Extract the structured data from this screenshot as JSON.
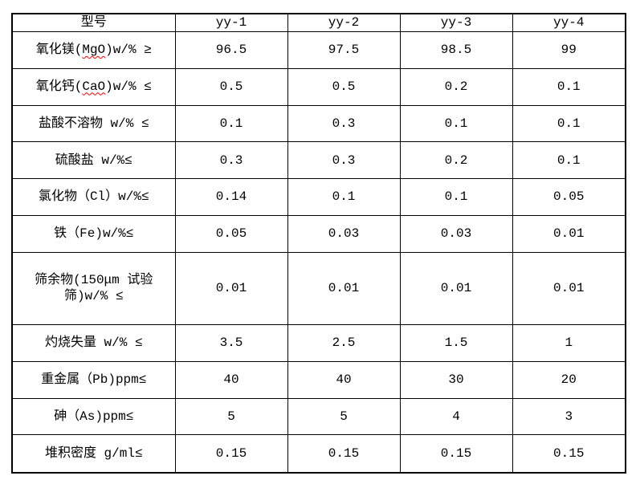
{
  "document": {
    "background_color": "#ffffff",
    "border_color": "#000000",
    "text_color": "#000000",
    "spellcheck_underline_color": "#ff0000"
  },
  "table": {
    "columns": [
      "型号",
      "yy-1",
      "yy-2",
      "yy-3",
      "yy-4"
    ],
    "rows": [
      {
        "label_pre": "氧化镁(",
        "label_marked": "MgO",
        "label_post": ")w/% ≥",
        "values": [
          "96.5",
          "97.5",
          "98.5",
          "99"
        ]
      },
      {
        "label_pre": "氧化钙(",
        "label_marked": "CaO",
        "label_post": ")w/% ≤",
        "values": [
          "0.5",
          "0.5",
          "0.2",
          "0.1"
        ]
      },
      {
        "label_pre": "盐酸不溶物 w/% ≤",
        "label_marked": "",
        "label_post": "",
        "values": [
          "0.1",
          "0.3",
          "0.1",
          "0.1"
        ]
      },
      {
        "label_pre": "硫酸盐 w/%≤",
        "label_marked": "",
        "label_post": "",
        "values": [
          "0.3",
          "0.3",
          "0.2",
          "0.1"
        ]
      },
      {
        "label_pre": "氯化物（Cl）w/%≤",
        "label_marked": "",
        "label_post": "",
        "values": [
          "0.14",
          "0.1",
          "0.1",
          "0.05"
        ]
      },
      {
        "label_pre": "铁（Fe)w/%≤",
        "label_marked": "",
        "label_post": "",
        "values": [
          "0.05",
          "0.03",
          "0.03",
          "0.01"
        ]
      },
      {
        "label_pre": "筛余物(150μm 试验\n筛)w/% ≤",
        "label_marked": "",
        "label_post": "",
        "values": [
          "0.01",
          "0.01",
          "0.01",
          "0.01"
        ]
      },
      {
        "label_pre": "灼烧失量 w/% ≤",
        "label_marked": "",
        "label_post": "",
        "values": [
          "3.5",
          "2.5",
          "1.5",
          "1"
        ]
      },
      {
        "label_pre": "重金属（Pb)ppm≤",
        "label_marked": "",
        "label_post": "",
        "values": [
          "40",
          "40",
          "30",
          "20"
        ]
      },
      {
        "label_pre": "砷（As)ppm≤",
        "label_marked": "",
        "label_post": "",
        "values": [
          "5",
          "5",
          "4",
          "3"
        ]
      },
      {
        "label_pre": "堆积密度 g/ml≤",
        "label_marked": "",
        "label_post": "",
        "values": [
          "0.15",
          "0.15",
          "0.15",
          "0.15"
        ]
      }
    ]
  }
}
